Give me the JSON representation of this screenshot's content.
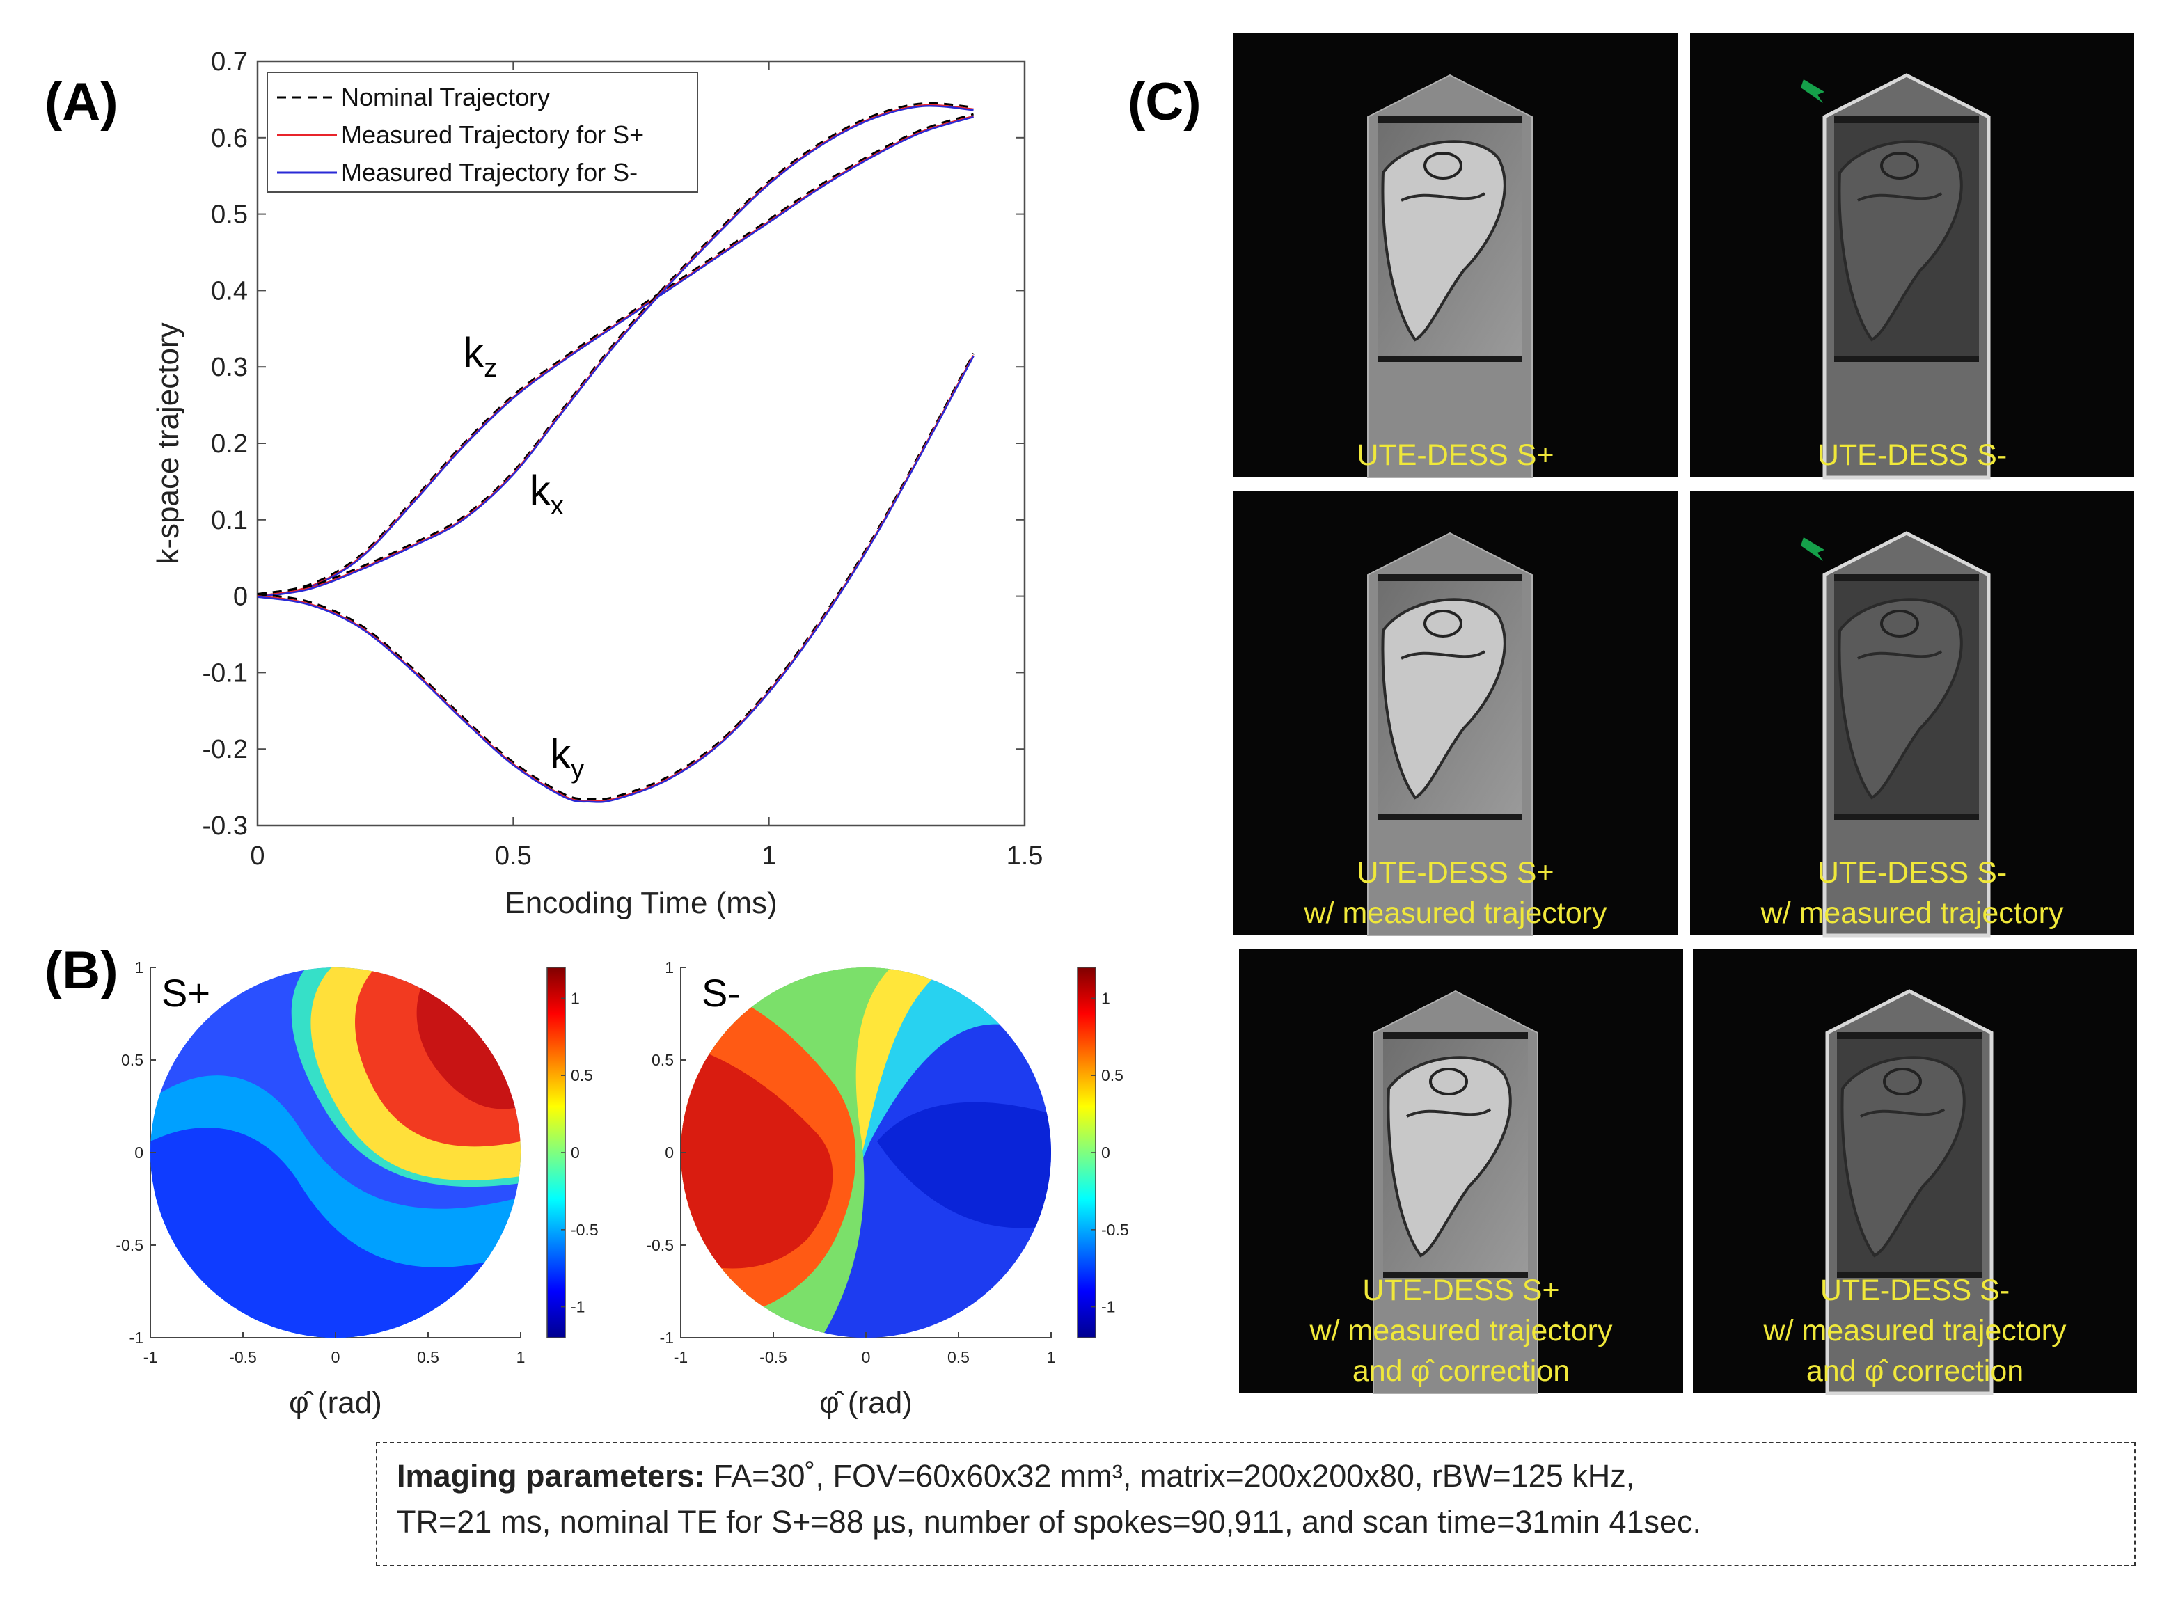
{
  "panels": {
    "a": "(A)",
    "b": "(B)",
    "c": "(C)"
  },
  "chart_data": [
    {
      "type": "line",
      "panel": "(A)",
      "xlabel": "Encoding Time (ms)",
      "ylabel": "k-space trajectory",
      "xlim": [
        0,
        1.5
      ],
      "ylim": [
        -0.3,
        0.7
      ],
      "xticks": [
        "0",
        "0.5",
        "1",
        "1.5"
      ],
      "yticks": [
        "-0.3",
        "-0.2",
        "-0.1",
        "0",
        "0.1",
        "0.2",
        "0.3",
        "0.4",
        "0.5",
        "0.6",
        "0.7"
      ],
      "legend": [
        "Nominal Trajectory",
        "Measured Trajectory for S+",
        "Measured Trajectory for S-"
      ],
      "legend_position": "top-left",
      "colors": {
        "nominal": "#000000",
        "splus": "#e8242b",
        "sminus": "#2a2ad6"
      },
      "curve_labels": [
        {
          "base": "k",
          "sub": "z",
          "x": 0.47,
          "y": 0.3
        },
        {
          "base": "k",
          "sub": "x",
          "x": 0.6,
          "y": 0.12
        },
        {
          "base": "k",
          "sub": "y",
          "x": 0.64,
          "y": -0.225
        }
      ],
      "series": [
        {
          "name": "kz",
          "x": [
            0,
            0.1,
            0.2,
            0.3,
            0.4,
            0.5,
            0.6,
            0.7,
            0.8,
            0.9,
            1.0,
            1.1,
            1.2,
            1.3,
            1.4
          ],
          "y": [
            0,
            0.012,
            0.05,
            0.12,
            0.195,
            0.26,
            0.31,
            0.355,
            0.4,
            0.445,
            0.49,
            0.535,
            0.575,
            0.608,
            0.628
          ]
        },
        {
          "name": "kx",
          "x": [
            0,
            0.1,
            0.2,
            0.3,
            0.4,
            0.5,
            0.6,
            0.7,
            0.8,
            0.9,
            1.0,
            1.1,
            1.2,
            1.3,
            1.4
          ],
          "y": [
            0,
            0.01,
            0.035,
            0.065,
            0.1,
            0.16,
            0.245,
            0.33,
            0.405,
            0.475,
            0.54,
            0.59,
            0.625,
            0.642,
            0.637
          ]
        },
        {
          "name": "ky",
          "x": [
            0,
            0.1,
            0.2,
            0.3,
            0.4,
            0.5,
            0.6,
            0.65,
            0.7,
            0.8,
            0.9,
            1.0,
            1.1,
            1.2,
            1.3,
            1.4
          ],
          "y": [
            0,
            -0.01,
            -0.04,
            -0.095,
            -0.16,
            -0.22,
            -0.262,
            -0.268,
            -0.265,
            -0.24,
            -0.195,
            -0.125,
            -0.035,
            0.07,
            0.19,
            0.315
          ]
        }
      ]
    },
    {
      "type": "heatmap",
      "panel": "(B)",
      "title": "S+",
      "xlabel": "φ̂ (rad)",
      "xlim": [
        -1,
        1
      ],
      "ylim": [
        -1,
        1
      ],
      "xticks": [
        "-1",
        "-0.5",
        "0",
        "0.5",
        "1"
      ],
      "yticks": [
        "1",
        "0.5",
        "0",
        "-0.5",
        "-1"
      ],
      "colorbar_ticks": [
        "1",
        "0.5",
        "0",
        "-0.5",
        "-1"
      ],
      "colorbar_range": [
        -1.2,
        1.2
      ],
      "pattern": "s-shaped split, red upper-right, blue lower-left"
    },
    {
      "type": "heatmap",
      "panel": "(B)",
      "title": "S-",
      "xlabel": "φ̂ (rad)",
      "xlim": [
        -1,
        1
      ],
      "ylim": [
        -1,
        1
      ],
      "xticks": [
        "-1",
        "-0.5",
        "0",
        "0.5",
        "1"
      ],
      "yticks": [
        "1",
        "0.5",
        "0",
        "-0.5",
        "-1"
      ],
      "colorbar_ticks": [
        "1",
        "0.5",
        "0",
        "-0.5",
        "-1"
      ],
      "colorbar_range": [
        -1.2,
        1.2
      ],
      "pattern": "swirl, red on left, blue on right"
    }
  ],
  "mri_images": [
    {
      "id": "c11",
      "lines": [
        "UTE-DESS S+"
      ],
      "arrow": false,
      "signal": "splus"
    },
    {
      "id": "c12",
      "lines": [
        "UTE-DESS S-"
      ],
      "arrow": true,
      "signal": "sminus"
    },
    {
      "id": "c21",
      "lines": [
        "UTE-DESS S+",
        "w/ measured trajectory"
      ],
      "arrow": false,
      "signal": "splus"
    },
    {
      "id": "c22",
      "lines": [
        "UTE-DESS S-",
        "w/ measured trajectory"
      ],
      "arrow": true,
      "signal": "sminus"
    },
    {
      "id": "c31",
      "lines": [
        "UTE-DESS S+",
        "w/ measured trajectory",
        "and φ̂ correction"
      ],
      "arrow": false,
      "signal": "splus"
    },
    {
      "id": "c32",
      "lines": [
        "UTE-DESS S-",
        "w/ measured trajectory",
        "and φ̂ correction"
      ],
      "arrow": false,
      "signal": "sminus"
    }
  ],
  "params": {
    "label": "Imaging parameters:",
    "line1": " FA=30˚, FOV=60x60x32 mm³, matrix=200x200x80, rBW=125 kHz,",
    "line2": "TR=21 ms, nominal TE for S+=88 µs, number of spokes=90,911, and scan time=31min 41sec."
  }
}
